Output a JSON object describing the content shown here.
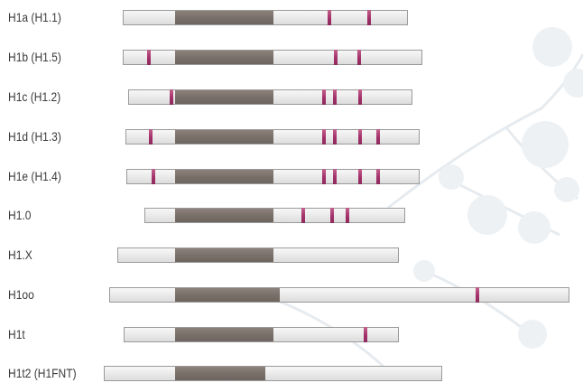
{
  "histones": [
    {
      "label": "H1a (H1.1)",
      "marks": 2
    },
    {
      "label": "H1b (H1.5)",
      "marks": 3
    },
    {
      "label": "H1c (H1.2)",
      "marks": 4
    },
    {
      "label": "H1d (H1.3)",
      "marks": 5
    },
    {
      "label": "H1e (H1.4)",
      "marks": 5
    },
    {
      "label": "H1.0",
      "marks": 3
    },
    {
      "label": "H1.X",
      "marks": 0
    },
    {
      "label": "H1oo",
      "marks": 1
    },
    {
      "label": "H1t",
      "marks": 1
    },
    {
      "label": "H1t2 (H1FNT)",
      "marks": 0
    }
  ],
  "colors": {
    "tail": "#e9e9e9",
    "globular_domain": "#7a706a",
    "mark": "#a3306a",
    "label_text": "#3a3a3a"
  }
}
